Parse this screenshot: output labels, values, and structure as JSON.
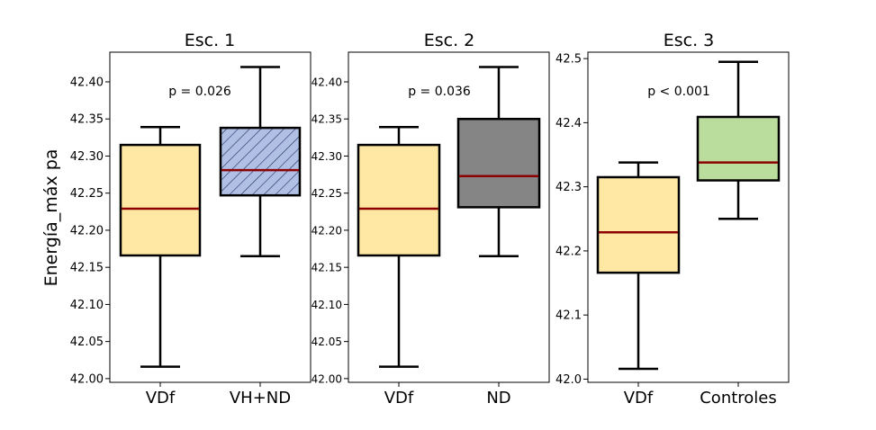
{
  "figure": {
    "ylabel": "Energía_máx pa"
  },
  "chart_data": [
    {
      "type": "box",
      "title": "Esc. 1",
      "ylim": [
        41.995,
        42.44
      ],
      "yticks": [
        42.0,
        42.05,
        42.1,
        42.15,
        42.2,
        42.25,
        42.3,
        42.35,
        42.4
      ],
      "tick_decimals": 2,
      "annotation": "p = 0.026",
      "categories": [
        "VDf",
        "VH+ND"
      ],
      "boxes": [
        {
          "whisker_low": 42.016,
          "q1": 42.166,
          "median": 42.229,
          "q3": 42.315,
          "whisker_high": 42.339,
          "fill": "#ffe8a3",
          "hatch": false
        },
        {
          "whisker_low": 42.165,
          "q1": 42.247,
          "median": 42.281,
          "q3": 42.338,
          "whisker_high": 42.42,
          "fill": "#b0c0e4",
          "hatch": true
        }
      ]
    },
    {
      "type": "box",
      "title": "Esc. 2",
      "ylim": [
        41.995,
        42.44
      ],
      "yticks": [
        42.0,
        42.05,
        42.1,
        42.15,
        42.2,
        42.25,
        42.3,
        42.35,
        42.4
      ],
      "tick_decimals": 2,
      "annotation": "p = 0.036",
      "categories": [
        "VDf",
        "ND"
      ],
      "boxes": [
        {
          "whisker_low": 42.016,
          "q1": 42.166,
          "median": 42.229,
          "q3": 42.315,
          "whisker_high": 42.339,
          "fill": "#ffe8a3",
          "hatch": false
        },
        {
          "whisker_low": 42.165,
          "q1": 42.231,
          "median": 42.273,
          "q3": 42.35,
          "whisker_high": 42.42,
          "fill": "#858585",
          "hatch": false
        }
      ]
    },
    {
      "type": "box",
      "title": "Esc. 3",
      "ylim": [
        41.995,
        42.51
      ],
      "yticks": [
        42.0,
        42.1,
        42.2,
        42.3,
        42.4,
        42.5
      ],
      "tick_decimals": 1,
      "annotation": "p < 0.001",
      "categories": [
        "VDf",
        "Controles"
      ],
      "boxes": [
        {
          "whisker_low": 42.016,
          "q1": 42.166,
          "median": 42.229,
          "q3": 42.315,
          "whisker_high": 42.338,
          "fill": "#ffe8a3",
          "hatch": false
        },
        {
          "whisker_low": 42.25,
          "q1": 42.31,
          "median": 42.338,
          "q3": 42.409,
          "whisker_high": 42.495,
          "fill": "#badd9e",
          "hatch": false
        }
      ]
    }
  ]
}
